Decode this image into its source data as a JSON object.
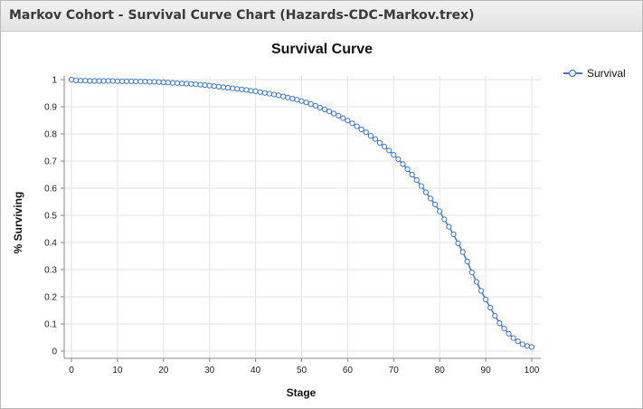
{
  "window": {
    "title": "Markov Cohort - Survival Curve Chart (Hazards-CDC-Markov.trex)"
  },
  "chart_data": {
    "type": "line",
    "title": "Survival Curve",
    "xlabel": "Stage",
    "ylabel": "% Surviving",
    "xlim": [
      0,
      100
    ],
    "ylim": [
      0,
      1
    ],
    "xticks": [
      "0",
      "10",
      "20",
      "30",
      "40",
      "50",
      "60",
      "70",
      "80",
      "90",
      "100"
    ],
    "yticks": [
      "0",
      "0.1",
      "0.2",
      "0.3",
      "0.4",
      "0.5",
      "0.6",
      "0.7",
      "0.8",
      "0.9",
      "1"
    ],
    "grid": true,
    "legend_position": "top-right",
    "series": [
      {
        "name": "Survival",
        "color": "#3a78e0",
        "marker": "open-circle",
        "x": [
          0,
          1,
          2,
          3,
          4,
          5,
          6,
          7,
          8,
          9,
          10,
          11,
          12,
          13,
          14,
          15,
          16,
          17,
          18,
          19,
          20,
          21,
          22,
          23,
          24,
          25,
          26,
          27,
          28,
          29,
          30,
          31,
          32,
          33,
          34,
          35,
          36,
          37,
          38,
          39,
          40,
          41,
          42,
          43,
          44,
          45,
          46,
          47,
          48,
          49,
          50,
          51,
          52,
          53,
          54,
          55,
          56,
          57,
          58,
          59,
          60,
          61,
          62,
          63,
          64,
          65,
          66,
          67,
          68,
          69,
          70,
          71,
          72,
          73,
          74,
          75,
          76,
          77,
          78,
          79,
          80,
          81,
          82,
          83,
          84,
          85,
          86,
          87,
          88,
          89,
          90,
          91,
          92,
          93,
          94,
          95,
          96,
          97,
          98,
          99,
          100
        ],
        "values": [
          1.0,
          0.997,
          0.996,
          0.996,
          0.995,
          0.995,
          0.995,
          0.995,
          0.995,
          0.995,
          0.994,
          0.994,
          0.994,
          0.994,
          0.993,
          0.993,
          0.993,
          0.992,
          0.992,
          0.991,
          0.99,
          0.989,
          0.988,
          0.987,
          0.986,
          0.985,
          0.984,
          0.983,
          0.981,
          0.98,
          0.978,
          0.976,
          0.974,
          0.972,
          0.97,
          0.968,
          0.966,
          0.964,
          0.962,
          0.959,
          0.957,
          0.954,
          0.951,
          0.948,
          0.945,
          0.942,
          0.938,
          0.934,
          0.93,
          0.926,
          0.921,
          0.916,
          0.91,
          0.904,
          0.897,
          0.89,
          0.883,
          0.875,
          0.867,
          0.858,
          0.849,
          0.839,
          0.828,
          0.817,
          0.806,
          0.793,
          0.781,
          0.767,
          0.753,
          0.739,
          0.723,
          0.707,
          0.689,
          0.67,
          0.65,
          0.63,
          0.608,
          0.585,
          0.562,
          0.54,
          0.515,
          0.485,
          0.458,
          0.43,
          0.397,
          0.365,
          0.33,
          0.29,
          0.255,
          0.222,
          0.19,
          0.16,
          0.13,
          0.103,
          0.083,
          0.064,
          0.048,
          0.036,
          0.025,
          0.019,
          0.015
        ]
      }
    ]
  }
}
